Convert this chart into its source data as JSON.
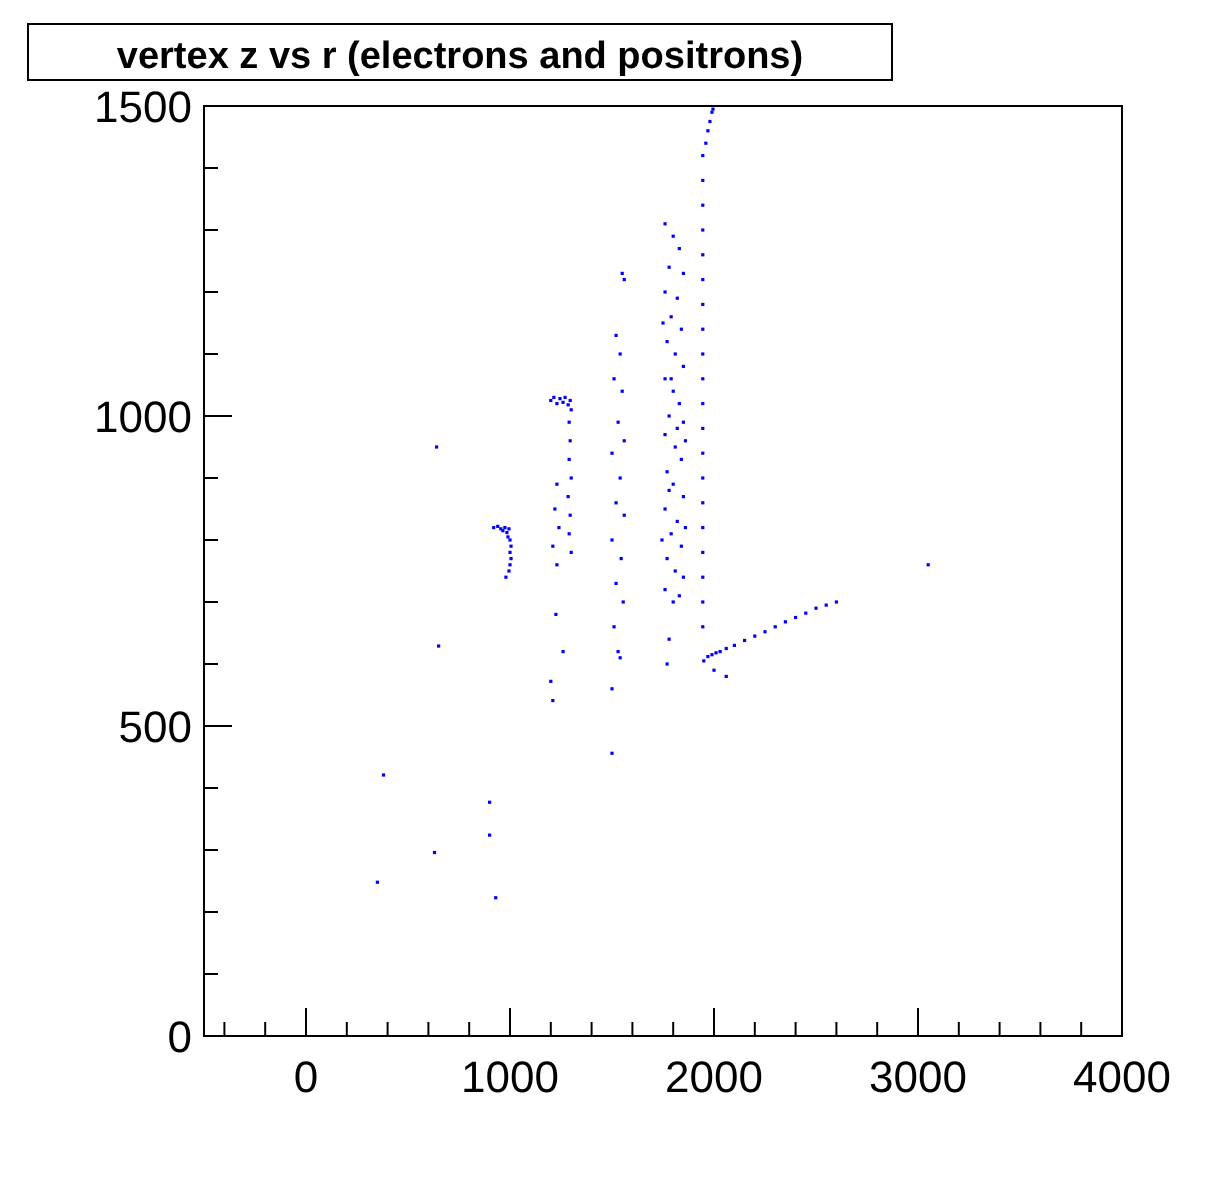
{
  "chart_data": {
    "type": "scatter",
    "title": "vertex z vs r (electrons and positrons)",
    "marker": "square",
    "xlim": [
      -500,
      4000
    ],
    "ylim": [
      0,
      1500
    ],
    "xticks": [
      {
        "value": -400,
        "label": null
      },
      {
        "value": -200,
        "label": null
      },
      0,
      {
        "value": 200,
        "label": null
      },
      {
        "value": 400,
        "label": null
      },
      {
        "value": 600,
        "label": null
      },
      {
        "value": 800,
        "label": null
      },
      1000,
      {
        "value": 1200,
        "label": null
      },
      {
        "value": 1400,
        "label": null
      },
      {
        "value": 1600,
        "label": null
      },
      {
        "value": 1800,
        "label": null
      },
      2000,
      {
        "value": 2200,
        "label": null
      },
      {
        "value": 2400,
        "label": null
      },
      {
        "value": 2600,
        "label": null
      },
      {
        "value": 2800,
        "label": null
      },
      3000,
      {
        "value": 3200,
        "label": null
      },
      {
        "value": 3400,
        "label": null
      },
      {
        "value": 3600,
        "label": null
      },
      {
        "value": 3800,
        "label": null
      },
      4000
    ],
    "yticks": [
      0,
      {
        "value": 100,
        "label": null
      },
      {
        "value": 200,
        "label": null
      },
      {
        "value": 300,
        "label": null
      },
      {
        "value": 400,
        "label": null
      },
      500,
      {
        "value": 600,
        "label": null
      },
      {
        "value": 700,
        "label": null
      },
      {
        "value": 800,
        "label": null
      },
      {
        "value": 900,
        "label": null
      },
      1000,
      {
        "value": 1100,
        "label": null
      },
      {
        "value": 1200,
        "label": null
      },
      {
        "value": 1300,
        "label": null
      },
      {
        "value": 1400,
        "label": null
      },
      1500
    ],
    "series": [
      {
        "color": "#0000ff",
        "x": [
          350,
          630,
          380,
          650,
          900,
          900,
          930,
          1210,
          1200,
          1500,
          640,
          920,
          940,
          955,
          965,
          975,
          985,
          990,
          995,
          1000,
          1005,
          1000,
          1005,
          1000,
          995,
          980,
          1200,
          1215,
          1230,
          1245,
          1260,
          1270,
          1285,
          1295,
          1300,
          1290,
          1295,
          1290,
          1300,
          1285,
          1295,
          1290,
          1300,
          1230,
          1220,
          1210,
          1240,
          1230,
          1260,
          1225,
          1550,
          1560,
          1520,
          1540,
          1510,
          1550,
          1530,
          1560,
          1500,
          1540,
          1520,
          1560,
          1500,
          1545,
          1520,
          1555,
          1510,
          1530,
          1500,
          1540,
          1760,
          1800,
          1830,
          1780,
          1850,
          1760,
          1820,
          1790,
          1840,
          1770,
          1810,
          1850,
          1760,
          1800,
          1830,
          1780,
          1850,
          1760,
          1810,
          1840,
          1770,
          1800,
          1850,
          1760,
          1820,
          1790,
          1840,
          1770,
          1810,
          1850,
          1760,
          1800,
          1830,
          1780,
          1820,
          1790,
          1860,
          1745,
          1860,
          1750,
          1780,
          1770,
          1945,
          1945,
          1945,
          1945,
          1945,
          1945,
          1945,
          1945,
          1945,
          1945,
          1945,
          1945,
          1945,
          1945,
          1945,
          1945,
          1945,
          1945,
          1945,
          1945,
          1960,
          1970,
          1980,
          1990,
          1995,
          1950,
          1970,
          1990,
          2010,
          2030,
          2060,
          2100,
          2150,
          2200,
          2250,
          2300,
          2350,
          2400,
          2450,
          2500,
          2550,
          2600,
          3050,
          2000,
          2060
        ],
        "values": [
          248,
          296,
          421,
          629,
          377,
          324,
          223,
          541,
          572,
          456,
          950,
          820,
          822,
          818,
          815,
          820,
          812,
          805,
          818,
          800,
          790,
          780,
          770,
          760,
          750,
          740,
          1025,
          1030,
          1020,
          1028,
          1022,
          1030,
          1018,
          1025,
          1010,
          990,
          960,
          930,
          900,
          870,
          840,
          810,
          780,
          890,
          850,
          790,
          820,
          760,
          620,
          680,
          1230,
          1220,
          1130,
          1100,
          1060,
          1040,
          990,
          960,
          940,
          900,
          860,
          840,
          800,
          770,
          730,
          700,
          660,
          620,
          560,
          610,
          1310,
          1290,
          1270,
          1240,
          1230,
          1200,
          1190,
          1160,
          1140,
          1120,
          1100,
          1080,
          1060,
          1040,
          1020,
          1000,
          990,
          970,
          950,
          930,
          910,
          890,
          870,
          850,
          830,
          810,
          790,
          770,
          750,
          740,
          720,
          700,
          710,
          880,
          980,
          1060,
          960,
          800,
          820,
          1150,
          640,
          600,
          660,
          700,
          740,
          780,
          820,
          860,
          900,
          940,
          980,
          1020,
          1060,
          1100,
          1140,
          1180,
          1220,
          1260,
          1300,
          1340,
          1380,
          1420,
          1440,
          1460,
          1475,
          1490,
          1495,
          605,
          612,
          615,
          618,
          620,
          625,
          630,
          638,
          645,
          652,
          660,
          668,
          675,
          682,
          690,
          695,
          700,
          760,
          590,
          580
        ]
      }
    ]
  }
}
